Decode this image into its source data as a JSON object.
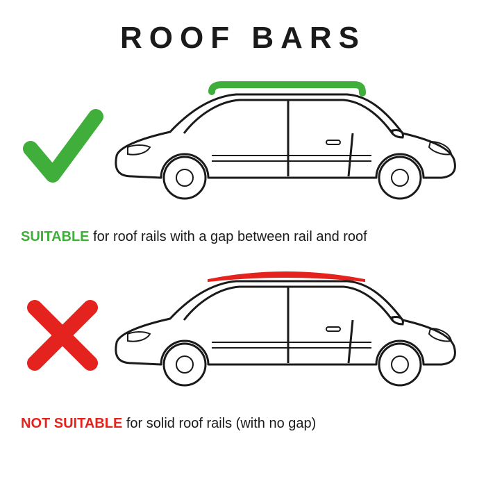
{
  "title": {
    "text": "ROOF BARS",
    "fontsize": 44,
    "letter_spacing": 10,
    "color": "#1a1a1a"
  },
  "colors": {
    "outline": "#1a1a1a",
    "ok": "#3fae3a",
    "bad": "#e4231e",
    "background": "#ffffff"
  },
  "rows": [
    {
      "id": "suitable",
      "mark": {
        "type": "check",
        "color": "#3fae3a",
        "stroke_width": 22
      },
      "rail_color": "#3fae3a",
      "rail_gap": true,
      "caption": {
        "lead": "SUITABLE",
        "lead_color": "#3fae3a",
        "rest": " for roof rails with a gap between rail and roof",
        "rest_color": "#1a1a1a",
        "fontsize": 20
      }
    },
    {
      "id": "not-suitable",
      "mark": {
        "type": "cross",
        "color": "#e4231e",
        "stroke_width": 22
      },
      "rail_color": "#e4231e",
      "rail_gap": false,
      "caption": {
        "lead": "NOT SUITABLE",
        "lead_color": "#e4231e",
        "rest": " for solid roof rails (with no gap)",
        "rest_color": "#1a1a1a",
        "fontsize": 20
      }
    }
  ],
  "car": {
    "outline_width": 3,
    "wheel_outer_r": 30,
    "wheel_inner_r": 12
  }
}
